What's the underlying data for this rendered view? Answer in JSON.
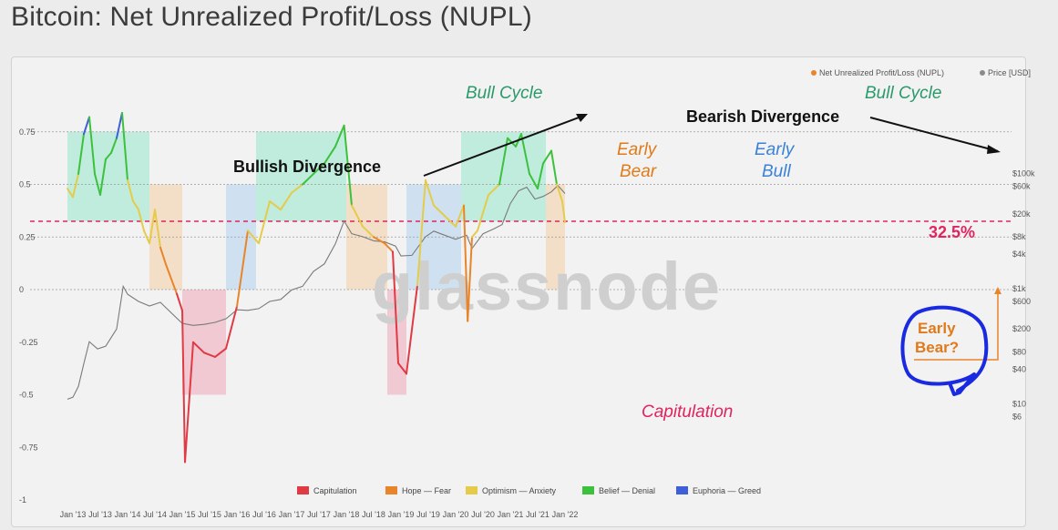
{
  "header": {
    "title": "Bitcoin: Net Unrealized Profit/Loss (NUPL)"
  },
  "watermark": "glassnode",
  "colors": {
    "Capitulation": "#e03a45",
    "Hope — Fear": "#e8852a",
    "Optimism — Anxiety": "#e4cc4a",
    "Belief — Denial": "#3cc13c",
    "Euphoria — Greed": "#3f5fd8",
    "price": "#7a7a7a",
    "threshold": "#e0245e"
  },
  "legend_top": [
    {
      "label": "Net Unrealized Profit/Loss (NUPL)",
      "color": "#e8852a"
    },
    {
      "label": "Price [USD]",
      "color": "#8a8a8a"
    }
  ],
  "legend_bottom": [
    {
      "label": "Capitulation",
      "color": "#e03a45"
    },
    {
      "label": "Hope — Fear",
      "color": "#e8852a"
    },
    {
      "label": "Optimism — Anxiety",
      "color": "#e4cc4a"
    },
    {
      "label": "Belief — Denial",
      "color": "#3cc13c"
    },
    {
      "label": "Euphoria — Greed",
      "color": "#3f5fd8"
    }
  ],
  "annotations": {
    "bull_cycle_1": "Bull Cycle",
    "bull_cycle_2": "Bull Cycle",
    "bullish_div": "Bullish Divergence",
    "bearish_div": "Bearish Divergence",
    "early_bear_1": "Early",
    "early_bear_2": "Bear",
    "early_bull_1": "Early",
    "early_bull_2": "Bull",
    "capitulation": "Capitulation",
    "pct": "32.5%",
    "early_bear_q1": "Early",
    "early_bear_q2": "Bear?"
  },
  "chart_data": {
    "type": "line",
    "x_ticks": [
      "Jan '13",
      "Jul '13",
      "Jan '14",
      "Jul '14",
      "Jan '15",
      "Jul '15",
      "Jan '16",
      "Jul '16",
      "Jan '17",
      "Jul '17",
      "Jan '18",
      "Jul '18",
      "Jan '19",
      "Jul '19",
      "Jan '20",
      "Jul '20",
      "Jan '21",
      "Jul '21",
      "Jan '22"
    ],
    "y_left_ticks": [
      "0.75",
      "0.5",
      "0.25",
      "0",
      "-0.25",
      "-0.5",
      "-0.75",
      "-1"
    ],
    "y_right_ticks": [
      "$100k",
      "$60k",
      "$20k",
      "$8k",
      "$4k",
      "$1k",
      "$600",
      "$200",
      "$80",
      "$40",
      "$10",
      "$6"
    ],
    "threshold": 0.325,
    "nupl": {
      "t": [
        2012.9,
        2013.0,
        2013.1,
        2013.2,
        2013.3,
        2013.4,
        2013.5,
        2013.6,
        2013.7,
        2013.8,
        2013.9,
        2014.0,
        2014.1,
        2014.2,
        2014.3,
        2014.4,
        2014.5,
        2014.6,
        2014.7,
        2014.8,
        2014.9,
        2015.0,
        2015.05,
        2015.2,
        2015.4,
        2015.6,
        2015.8,
        2016.0,
        2016.2,
        2016.4,
        2016.6,
        2016.8,
        2017.0,
        2017.2,
        2017.4,
        2017.6,
        2017.8,
        2017.96,
        2018.1,
        2018.3,
        2018.5,
        2018.7,
        2018.85,
        2018.95,
        2019.1,
        2019.3,
        2019.45,
        2019.6,
        2019.8,
        2020.0,
        2020.15,
        2020.22,
        2020.3,
        2020.4,
        2020.6,
        2020.8,
        2020.95,
        2021.1,
        2021.2,
        2021.35,
        2021.5,
        2021.6,
        2021.75,
        2021.85,
        2021.95,
        2022.0
      ],
      "v": [
        0.48,
        0.44,
        0.55,
        0.74,
        0.82,
        0.55,
        0.45,
        0.62,
        0.65,
        0.72,
        0.84,
        0.52,
        0.42,
        0.38,
        0.28,
        0.22,
        0.38,
        0.2,
        0.12,
        0.05,
        -0.02,
        -0.1,
        -0.82,
        -0.25,
        -0.3,
        -0.32,
        -0.28,
        -0.08,
        0.28,
        0.22,
        0.42,
        0.38,
        0.46,
        0.5,
        0.55,
        0.6,
        0.68,
        0.78,
        0.4,
        0.3,
        0.25,
        0.22,
        0.18,
        -0.35,
        -0.4,
        0.02,
        0.52,
        0.4,
        0.35,
        0.3,
        0.4,
        -0.15,
        0.25,
        0.28,
        0.45,
        0.5,
        0.72,
        0.68,
        0.74,
        0.55,
        0.48,
        0.6,
        0.66,
        0.5,
        0.42,
        0.32
      ]
    },
    "price": {
      "t": [
        2012.9,
        2013.0,
        2013.1,
        2013.2,
        2013.3,
        2013.45,
        2013.6,
        2013.8,
        2013.92,
        2014.0,
        2014.2,
        2014.4,
        2014.6,
        2014.8,
        2015.0,
        2015.2,
        2015.4,
        2015.6,
        2015.8,
        2016.0,
        2016.2,
        2016.4,
        2016.6,
        2016.8,
        2017.0,
        2017.2,
        2017.4,
        2017.6,
        2017.8,
        2017.96,
        2018.1,
        2018.3,
        2018.5,
        2018.7,
        2018.9,
        2019.0,
        2019.2,
        2019.45,
        2019.6,
        2019.8,
        2020.0,
        2020.2,
        2020.3,
        2020.5,
        2020.7,
        2020.85,
        2021.0,
        2021.15,
        2021.3,
        2021.45,
        2021.6,
        2021.75,
        2021.87,
        2022.0
      ],
      "v": [
        12,
        13,
        20,
        50,
        120,
        90,
        100,
        200,
        1100,
        800,
        600,
        500,
        580,
        380,
        250,
        230,
        240,
        260,
        300,
        430,
        420,
        450,
        600,
        650,
        950,
        1100,
        2000,
        2700,
        6000,
        15000,
        9000,
        8000,
        6800,
        6500,
        5500,
        3700,
        3800,
        8000,
        10000,
        8500,
        7200,
        8500,
        5000,
        9000,
        11000,
        13000,
        30000,
        50000,
        58000,
        36000,
        40000,
        48000,
        62000,
        45000
      ]
    }
  }
}
